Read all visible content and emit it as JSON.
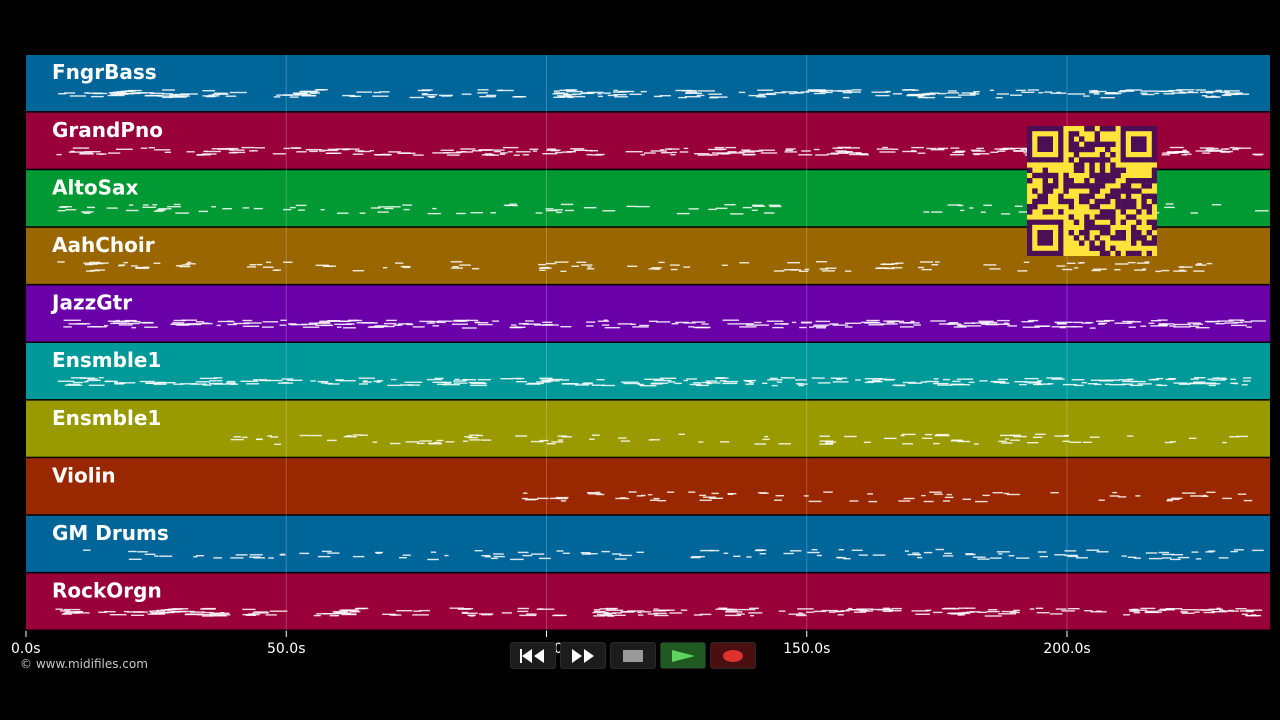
{
  "tracks": [
    {
      "name": "FngrBass",
      "color": "#006699"
    },
    {
      "name": "GrandPno",
      "color": "#99003a"
    },
    {
      "name": "AltoSax",
      "color": "#009933"
    },
    {
      "name": "AahChoir",
      "color": "#996600"
    },
    {
      "name": "JazzGtr",
      "color": "#6a00a8"
    },
    {
      "name": "Ensmble1",
      "color": "#009999"
    },
    {
      "name": "Ensmble1",
      "color": "#999900"
    },
    {
      "name": "Violin",
      "color": "#992800"
    },
    {
      "name": "GM Drums",
      "color": "#006699"
    },
    {
      "name": "RockOrgn",
      "color": "#99003a"
    }
  ],
  "timeline": {
    "ticks": [
      "0.0s",
      "50.0s",
      "100.0s",
      "150.0s",
      "200.0s"
    ],
    "tick_values": [
      0,
      50,
      100,
      150,
      200
    ],
    "range": [
      0,
      239
    ]
  },
  "copyright": "© www.midifiles.com",
  "transport": {
    "buttons": [
      {
        "name": "rewind-button",
        "icon": "rewind-icon"
      },
      {
        "name": "fast-forward-button",
        "icon": "fast-forward-icon"
      },
      {
        "name": "stop-button",
        "icon": "stop-icon"
      },
      {
        "name": "play-button",
        "icon": "play-icon"
      },
      {
        "name": "record-button",
        "icon": "record-icon"
      }
    ]
  },
  "qr_code": {
    "icon": "qr-code-icon",
    "color": "#ffe23a"
  }
}
